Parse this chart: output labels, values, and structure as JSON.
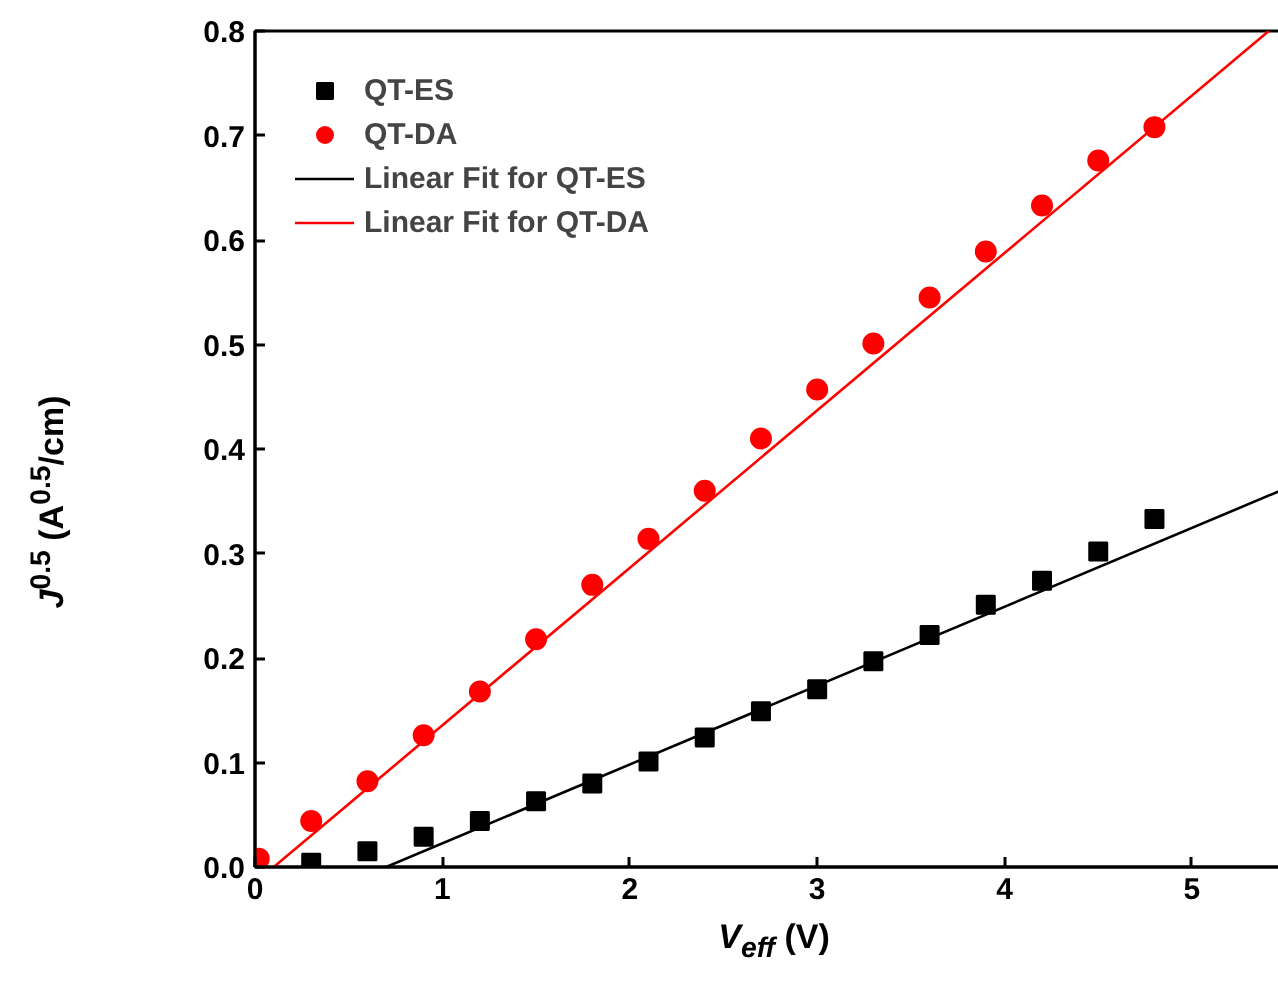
{
  "chart_data": {
    "type": "scatter",
    "xlabel": "V$_{eff}$ (V)",
    "ylabel": "J$^{0.5}$ (A$^{0.5}$/cm)",
    "xlim": [
      0,
      5.55
    ],
    "ylim": [
      0,
      0.8
    ],
    "xticks": [
      0,
      1,
      2,
      3,
      4,
      5
    ],
    "yticks": [
      {
        "value": 0,
        "label": "0.0"
      },
      {
        "value": 0.1,
        "label": "0.1"
      },
      {
        "value": 0.2,
        "label": "0.2"
      },
      {
        "value": 0.3,
        "label": "0.3"
      },
      {
        "value": 0.4,
        "label": "0.4"
      },
      {
        "value": 0.5,
        "label": "0.5"
      },
      {
        "value": 0.6,
        "label": "0.6"
      },
      {
        "value": 0.7,
        "label": "0.7"
      },
      {
        "value": 0.8,
        "label": "0.8"
      }
    ],
    "grid": false,
    "legend": "top left",
    "series": [
      {
        "name": "QT-ES",
        "marker": "square",
        "color": "#000000",
        "x": [
          0.3,
          0.6,
          0.9,
          1.2,
          1.5,
          1.8,
          2.1,
          2.4,
          2.7,
          3.0,
          3.3,
          3.6,
          3.9,
          4.2,
          4.5,
          4.8
        ],
        "values": [
          0.004,
          0.015,
          0.029,
          0.044,
          0.063,
          0.08,
          0.101,
          0.124,
          0.149,
          0.17,
          0.197,
          0.222,
          0.251,
          0.274,
          0.302,
          0.333
        ]
      },
      {
        "name": "QT-DA",
        "marker": "circle",
        "color": "#ff0000",
        "x": [
          0.02,
          0.3,
          0.6,
          0.9,
          1.2,
          1.5,
          1.8,
          2.1,
          2.4,
          2.7,
          3.0,
          3.3,
          3.6,
          3.9,
          4.2,
          4.5,
          4.8
        ],
        "values": [
          0.008,
          0.044,
          0.082,
          0.126,
          0.168,
          0.218,
          0.27,
          0.314,
          0.36,
          0.41,
          0.457,
          0.501,
          0.545,
          0.589,
          0.633,
          0.676,
          0.708
        ]
      },
      {
        "name": "Linear Fit for QT-ES",
        "type": "line",
        "line_style": "solid",
        "color": "#000000",
        "x": [
          0.7,
          5.55
        ],
        "values": [
          0,
          0.366
        ]
      },
      {
        "name": "Linear Fit for QT-DA",
        "type": "line",
        "line_style": "solid",
        "color": "#ff0000",
        "x": [
          0.1,
          5.41
        ],
        "values": [
          0,
          0.8
        ]
      }
    ]
  }
}
